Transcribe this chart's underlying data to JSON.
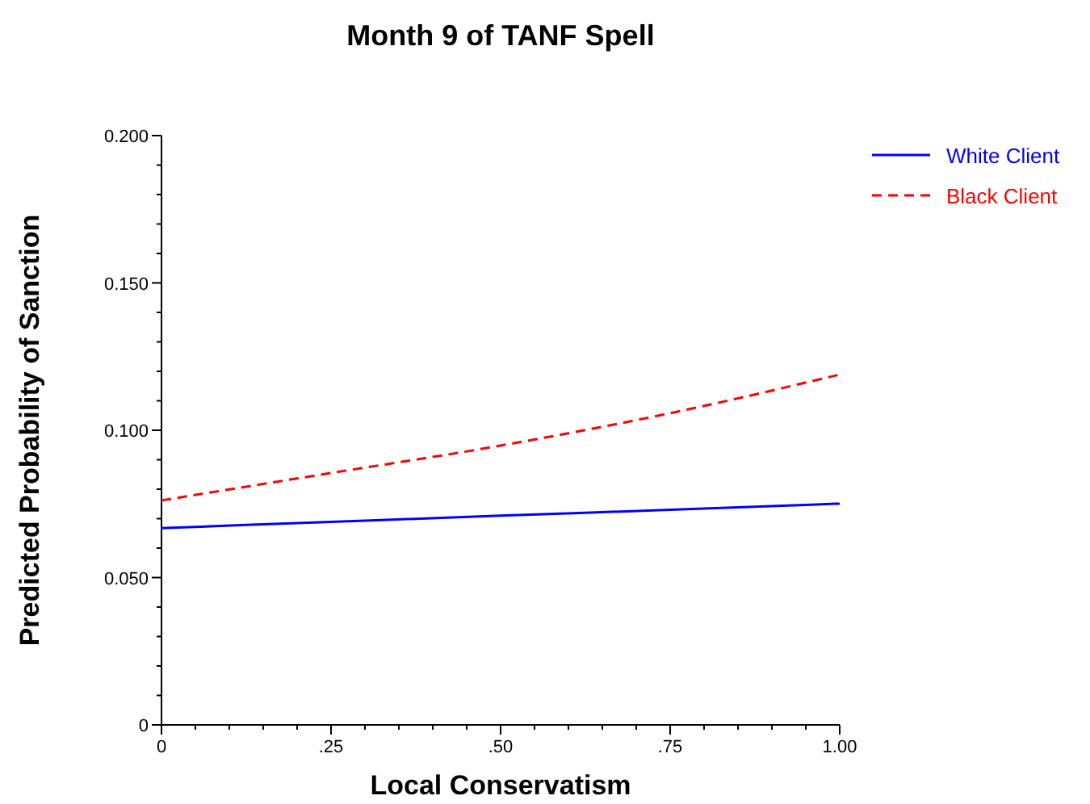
{
  "chart_data": {
    "type": "line",
    "title": "Month 9 of TANF Spell",
    "xlabel": "Local Conservatism",
    "ylabel": "Predicted Probability of Sanction",
    "x": [
      0,
      0.25,
      0.5,
      0.75,
      1
    ],
    "series": [
      {
        "name": "White Client",
        "color": "#0000ff",
        "values": [
          0.0668,
          0.0689,
          0.071,
          0.073,
          0.0751
        ],
        "line_style": "solid"
      },
      {
        "name": "Black Client",
        "color": "#ff0000",
        "values": [
          0.0762,
          0.0855,
          0.0948,
          0.1058,
          0.1189
        ],
        "line_style": "dashed"
      }
    ],
    "xlim": [
      0,
      1
    ],
    "xticks": [
      {
        "value": 0,
        "label": "0"
      },
      {
        "value": 0.05,
        "label": null
      },
      {
        "value": 0.1,
        "label": null
      },
      {
        "value": 0.15,
        "label": null
      },
      {
        "value": 0.2,
        "label": null
      },
      {
        "value": 0.25,
        "label": ".25"
      },
      {
        "value": 0.3,
        "label": null
      },
      {
        "value": 0.35,
        "label": null
      },
      {
        "value": 0.4,
        "label": null
      },
      {
        "value": 0.45,
        "label": null
      },
      {
        "value": 0.5,
        "label": ".50"
      },
      {
        "value": 0.55,
        "label": null
      },
      {
        "value": 0.6,
        "label": null
      },
      {
        "value": 0.65,
        "label": null
      },
      {
        "value": 0.7,
        "label": null
      },
      {
        "value": 0.75,
        "label": ".75"
      },
      {
        "value": 0.8,
        "label": null
      },
      {
        "value": 0.85,
        "label": null
      },
      {
        "value": 0.9,
        "label": null
      },
      {
        "value": 0.95,
        "label": null
      },
      {
        "value": 1,
        "label": "1.00"
      }
    ],
    "ylim": [
      0,
      0.2
    ],
    "yticks": [
      {
        "value": 0,
        "label": "0"
      },
      {
        "value": 0.01,
        "label": null
      },
      {
        "value": 0.02,
        "label": null
      },
      {
        "value": 0.03,
        "label": null
      },
      {
        "value": 0.04,
        "label": null
      },
      {
        "value": 0.05,
        "label": "0.050"
      },
      {
        "value": 0.06,
        "label": null
      },
      {
        "value": 0.07,
        "label": null
      },
      {
        "value": 0.08,
        "label": null
      },
      {
        "value": 0.09,
        "label": null
      },
      {
        "value": 0.1,
        "label": "0.100"
      },
      {
        "value": 0.11,
        "label": null
      },
      {
        "value": 0.12,
        "label": null
      },
      {
        "value": 0.13,
        "label": null
      },
      {
        "value": 0.14,
        "label": null
      },
      {
        "value": 0.15,
        "label": "0.150"
      },
      {
        "value": 0.16,
        "label": null
      },
      {
        "value": 0.17,
        "label": null
      },
      {
        "value": 0.18,
        "label": null
      },
      {
        "value": 0.19,
        "label": null
      },
      {
        "value": 0.2,
        "label": "0.200"
      }
    ],
    "grid": false,
    "legend": "top right",
    "marker": "none"
  }
}
